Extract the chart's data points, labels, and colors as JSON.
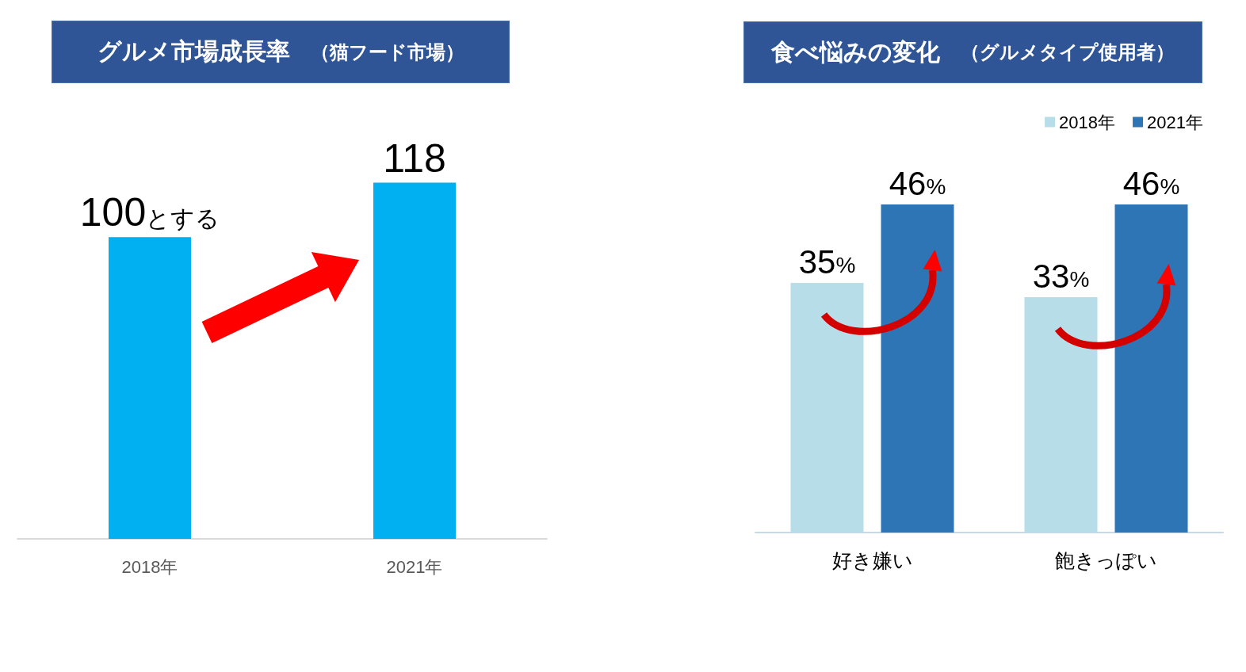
{
  "chart_data": [
    {
      "type": "bar",
      "title": "グルメ市場成長率",
      "subtitle": "（猫フード市場）",
      "categories": [
        "2018年",
        "2021年"
      ],
      "values": [
        100,
        118
      ],
      "color": "#00b0f0",
      "value_labels": [
        "100とする",
        "118"
      ]
    },
    {
      "type": "bar",
      "title": "食べ悩みの変化",
      "subtitle": "（グルメタイプ使用者）",
      "categories": [
        "好き嫌い",
        "飽きっぽい"
      ],
      "series": [
        {
          "name": "2018年",
          "color": "#b7dee8",
          "values": [
            35,
            33
          ],
          "value_labels": [
            "35%",
            "33%"
          ]
        },
        {
          "name": "2021年",
          "color": "#2e75b6",
          "values": [
            46,
            46
          ],
          "value_labels": [
            "46%",
            "46%"
          ]
        }
      ],
      "legend": "top right"
    }
  ]
}
